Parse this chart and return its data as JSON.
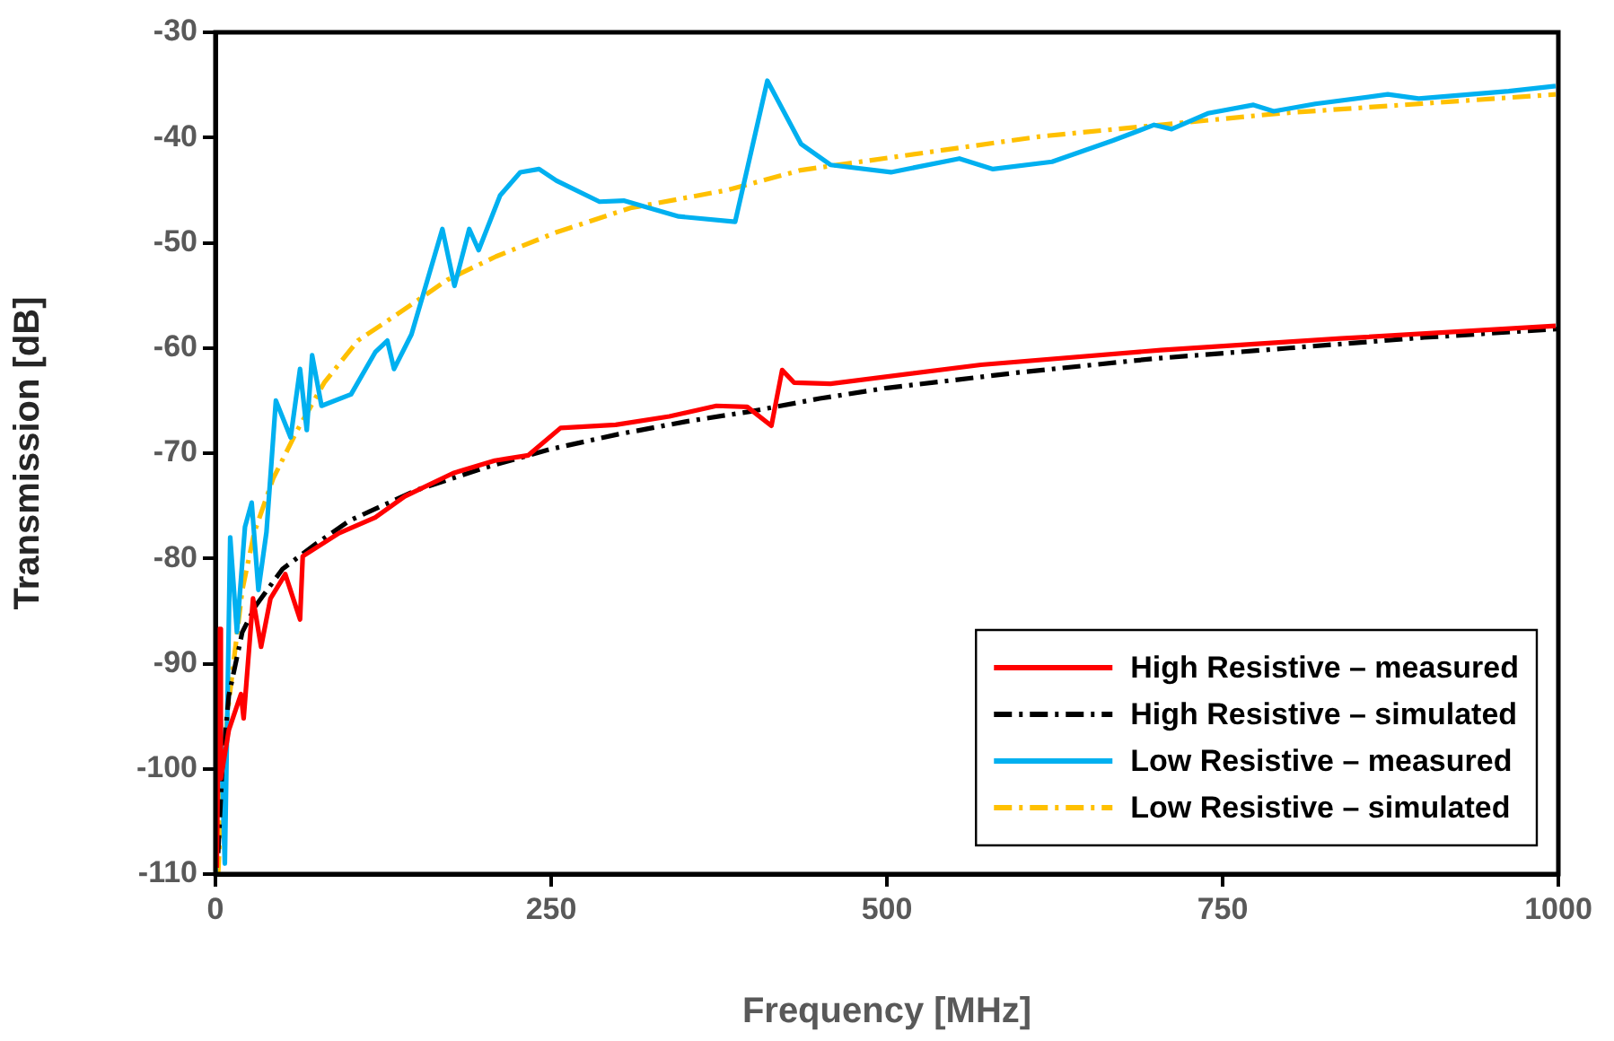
{
  "chart_data": {
    "type": "line",
    "xlabel": "Frequency [MHz]",
    "ylabel": "Transmission [dB]",
    "xlim": [
      0,
      1000
    ],
    "xticks": [
      0,
      250,
      500,
      750,
      1000
    ],
    "ylim": [
      -110,
      -30
    ],
    "yticks": [
      -110,
      -100,
      -90,
      -80,
      -70,
      -60,
      -50,
      -40,
      -30
    ],
    "grid": false,
    "legend": "bottom right",
    "marker": "none",
    "series": [
      {
        "name": "High Resistive – measured",
        "color": "#ff0000",
        "line_style": "solid",
        "x": [
          1,
          3,
          4,
          10,
          19,
          21,
          28,
          34,
          41,
          52,
          63,
          65,
          92,
          119,
          141,
          177,
          208,
          233,
          257,
          298,
          338,
          373,
          396,
          414,
          422,
          431,
          458,
          570,
          704,
          838,
          998
        ],
        "values": [
          -109.4,
          -86.7,
          -100.9,
          -96.3,
          -92.9,
          -95.2,
          -83.8,
          -88.4,
          -83.8,
          -81.5,
          -85.8,
          -79.8,
          -77.6,
          -76.1,
          -74.1,
          -71.9,
          -70.7,
          -70.2,
          -67.6,
          -67.3,
          -66.5,
          -65.5,
          -65.6,
          -67.4,
          -62.1,
          -63.3,
          -63.4,
          -61.6,
          -60.2,
          -59.1,
          -57.9
        ]
      },
      {
        "name": "High Resistive – simulated",
        "color": "#000000",
        "line_style": "dashed",
        "x": [
          2,
          5,
          10,
          20,
          30,
          50,
          75,
          100,
          150,
          200,
          250,
          300,
          350,
          400,
          450,
          500,
          600,
          700,
          800,
          900,
          1000
        ],
        "values": [
          -108,
          -100,
          -93,
          -87,
          -84.5,
          -81,
          -78.6,
          -76.4,
          -73.5,
          -71.4,
          -69.6,
          -68.2,
          -67,
          -66,
          -64.8,
          -63.8,
          -62.3,
          -61,
          -60,
          -59,
          -58.2
        ]
      },
      {
        "name": "Low Resistive – measured",
        "color": "#00b0f0",
        "line_style": "solid",
        "x": [
          0,
          2,
          7,
          11,
          16,
          22,
          27,
          32,
          38,
          45,
          56,
          63,
          68,
          72,
          79,
          101,
          119,
          128,
          133,
          146,
          169,
          178,
          189,
          196,
          212,
          227,
          241,
          254,
          286,
          304,
          345,
          387,
          411,
          436,
          458,
          503,
          554,
          579,
          623,
          668,
          699,
          712,
          739,
          773,
          788,
          819,
          873,
          896,
          963,
          998
        ],
        "values": [
          -110,
          -87.8,
          -109,
          -78,
          -87,
          -77,
          -74.7,
          -83,
          -77.5,
          -65,
          -68.5,
          -62,
          -67.8,
          -60.7,
          -65.5,
          -64.4,
          -60.4,
          -59.3,
          -62,
          -58.7,
          -48.7,
          -54.1,
          -48.7,
          -50.7,
          -45.5,
          -43.3,
          -43,
          -44.1,
          -46.1,
          -46,
          -47.5,
          -48,
          -34.6,
          -40.6,
          -42.6,
          -43.3,
          -42,
          -43,
          -42.3,
          -40.3,
          -38.8,
          -39.2,
          -37.7,
          -36.9,
          -37.5,
          -36.8,
          -35.9,
          -36.3,
          -35.6,
          -35.1
        ]
      },
      {
        "name": "Low Resistive – simulated",
        "color": "#ffc000",
        "line_style": "dashed",
        "x": [
          2,
          4.5,
          9,
          20,
          29,
          43,
          61,
          81,
          106,
          133,
          173,
          209,
          254,
          309,
          381,
          436,
          614,
          793,
          998
        ],
        "values": [
          -110,
          -103,
          -94.7,
          -83,
          -77.5,
          -72.4,
          -67.8,
          -63.3,
          -59.3,
          -57,
          -53.5,
          -51.3,
          -49,
          -46.7,
          -45,
          -43.1,
          -39.9,
          -37.7,
          -35.9
        ]
      }
    ]
  }
}
